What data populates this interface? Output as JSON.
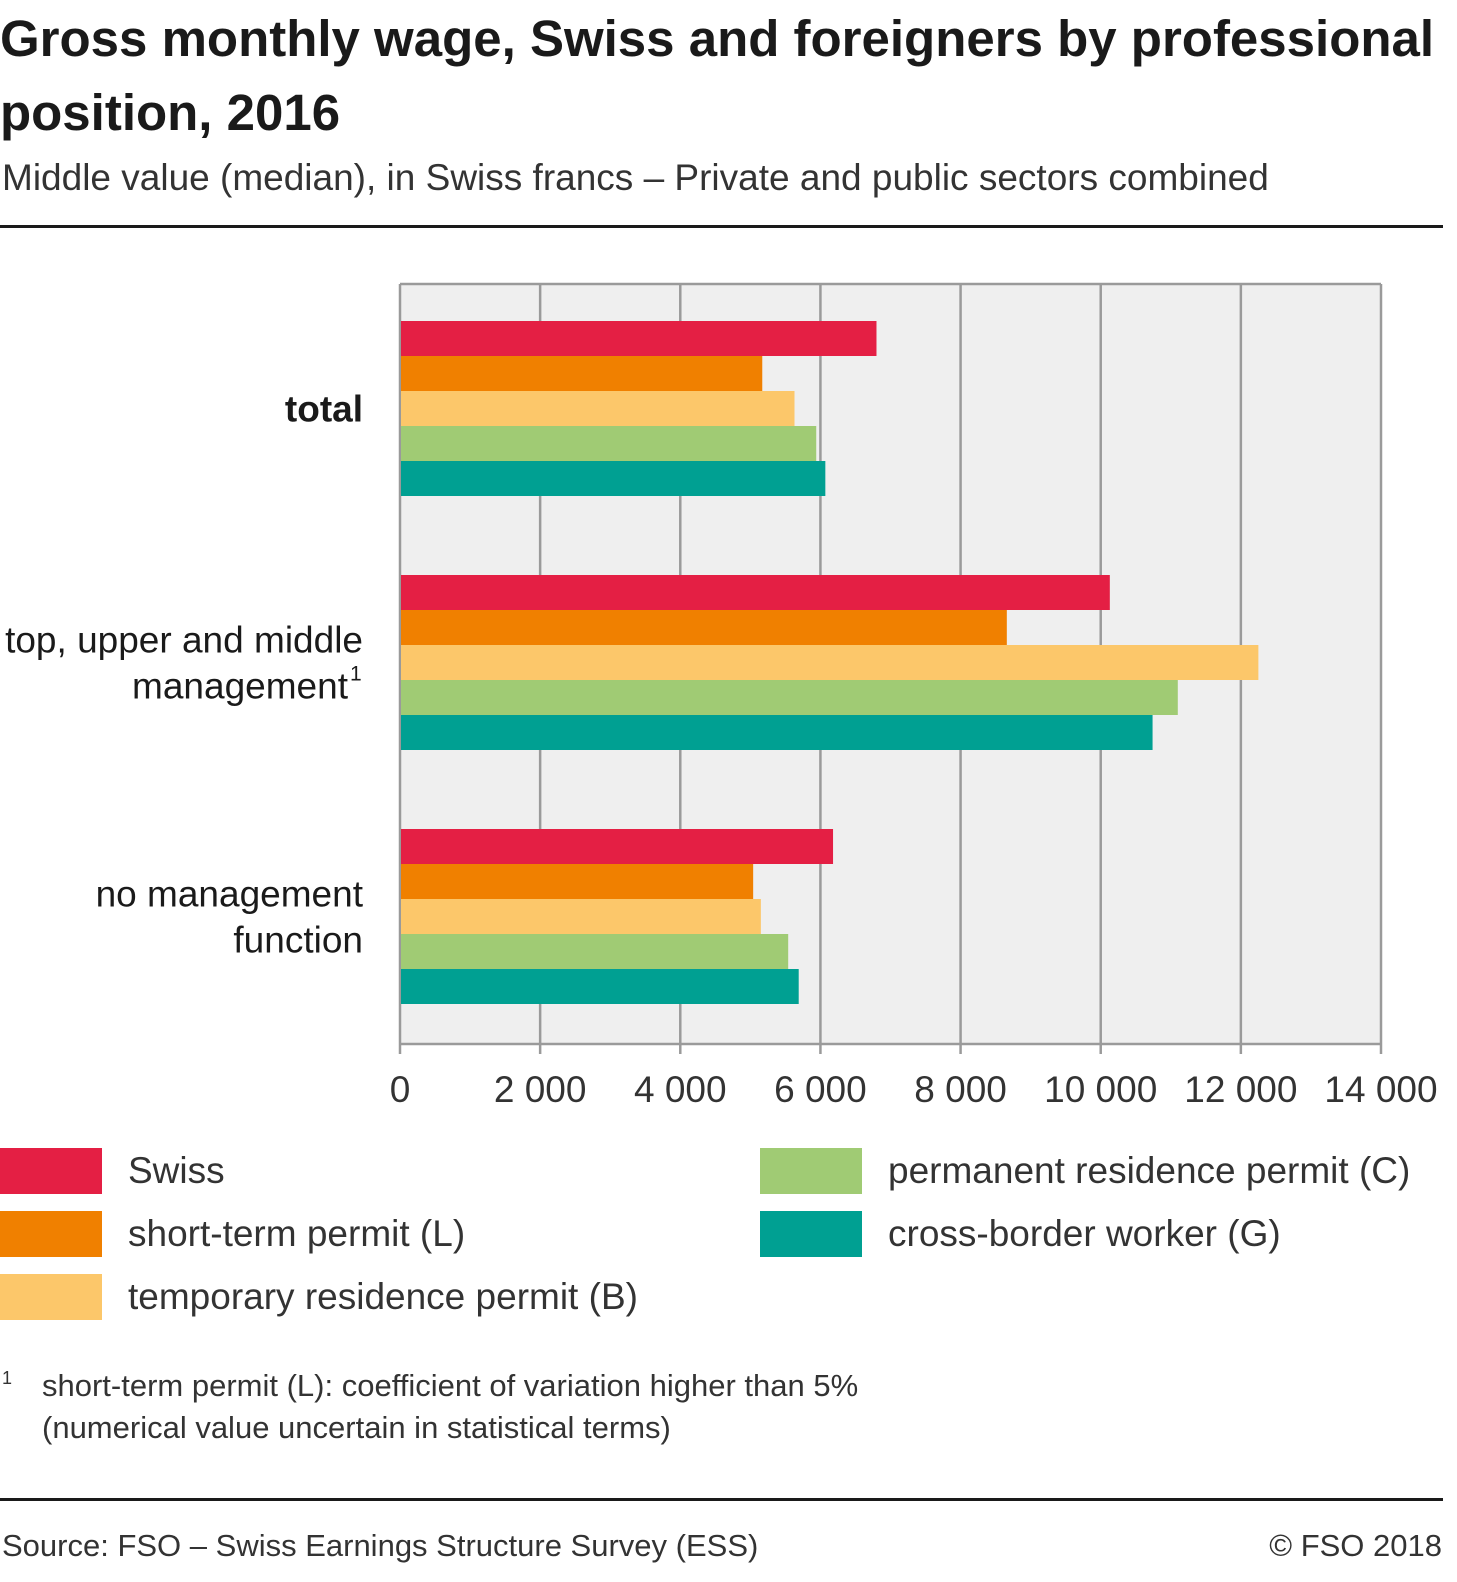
{
  "header": {
    "title": "Gross monthly wage, Swiss and foreigners by professional position, 2016",
    "subtitle": "Middle value (median), in Swiss francs – Private and public sectors combined"
  },
  "chart_data": {
    "type": "bar",
    "orientation": "horizontal",
    "categories": [
      {
        "label_lines": [
          "total"
        ],
        "bold": true,
        "footnote": ""
      },
      {
        "label_lines": [
          "top, upper and middle",
          "management"
        ],
        "bold": false,
        "footnote": "1"
      },
      {
        "label_lines": [
          "no management",
          "function"
        ],
        "bold": false,
        "footnote": ""
      }
    ],
    "series": [
      {
        "name": "Swiss",
        "color": "#e41f44",
        "values": [
          6800,
          10130,
          6180
        ]
      },
      {
        "name": "short-term permit (L)",
        "color": "#f08000",
        "values": [
          5170,
          8660,
          5040
        ]
      },
      {
        "name": "temporary residence permit (B)",
        "color": "#fcc76a",
        "values": [
          5630,
          12250,
          5150
        ]
      },
      {
        "name": "permanent residence permit (C)",
        "color": "#a0cb74",
        "values": [
          5940,
          11100,
          5540
        ]
      },
      {
        "name": "cross-border worker (G)",
        "color": "#00a092",
        "values": [
          6070,
          10740,
          5690
        ]
      }
    ],
    "xlim": [
      0,
      14000
    ],
    "x_ticks": [
      0,
      2000,
      4000,
      6000,
      8000,
      10000,
      12000,
      14000
    ],
    "x_tick_labels": [
      "0",
      "2 000",
      "4 000",
      "6 000",
      "8 000",
      "10 000",
      "12 000",
      "14 000"
    ],
    "grid": true,
    "legend_position": "bottom"
  },
  "footnote": {
    "mark": "1",
    "lines": [
      "short-term permit (L): coefficient of variation higher than 5%",
      "(numerical value uncertain in statistical terms)"
    ]
  },
  "source": "Source: FSO – Swiss Earnings Structure Survey (ESS)",
  "copyright": "© FSO 2018"
}
